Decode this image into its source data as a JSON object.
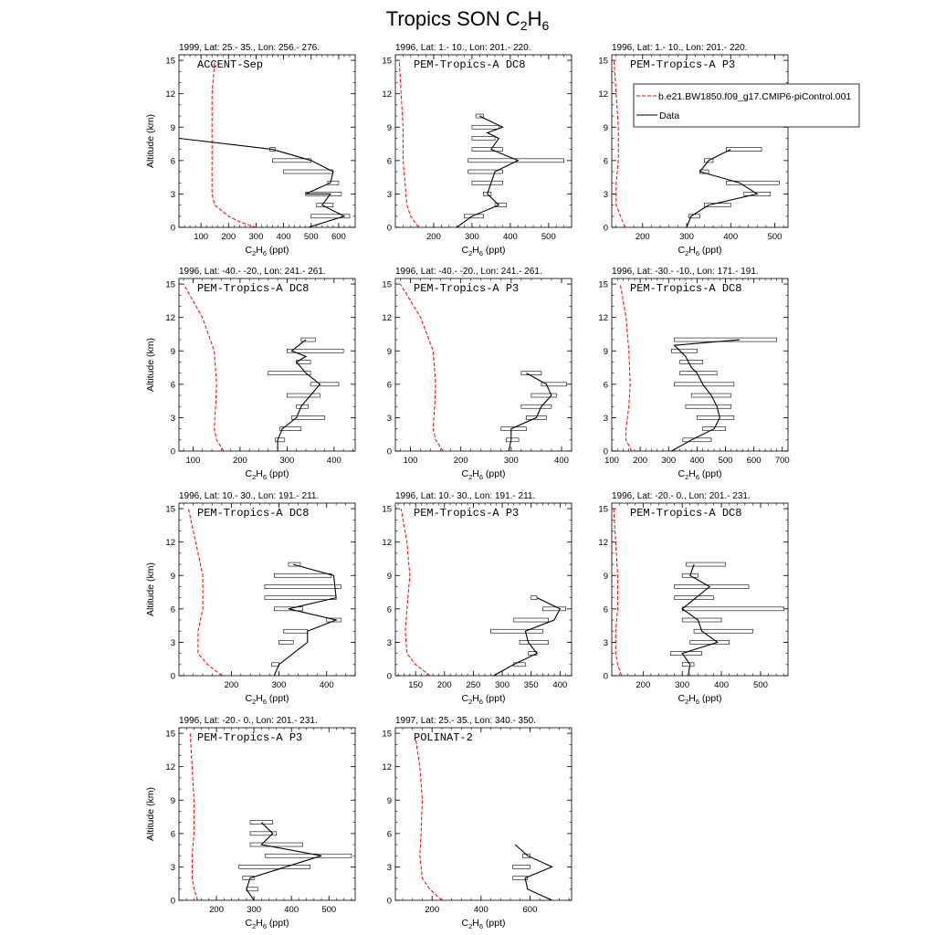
{
  "figure": {
    "title_prefix": "Tropics SON C",
    "title_sub1": "2",
    "title_mid": "H",
    "title_sub2": "6"
  },
  "axes_text": {
    "ylabel": "Altitude (km)",
    "xlabel_prefix": "C",
    "xlabel_sub1": "2",
    "xlabel_mid": "H",
    "xlabel_sub2": "6",
    "xlabel_suffix": " (ppt)"
  },
  "legend": {
    "model_label": "b.e21.BW1850.f09_g17.CMIP6-piControl.001",
    "data_label": "Data",
    "model_color": "#ff0000",
    "data_color": "#000000"
  },
  "chart_data": [
    {
      "type": "line",
      "header": "1999, Lat: 25.- 35., Lon: 256.- 276.",
      "campaign": "ACCENT-Sep",
      "xlim": [
        20,
        660
      ],
      "ylim": [
        0,
        15.5
      ],
      "xticks": [
        100,
        200,
        300,
        400,
        500,
        600
      ],
      "yticks": [
        0,
        3,
        6,
        9,
        12,
        15
      ],
      "model": {
        "x": [
          300,
          240,
          200,
          150,
          140,
          140,
          140,
          150
        ],
        "y": [
          0,
          0.5,
          1,
          2,
          3,
          6,
          12,
          15
        ]
      },
      "data": {
        "x": [
          490,
          620,
          540,
          570,
          480,
          570,
          580,
          500,
          360,
          20
        ],
        "y": [
          0,
          1,
          2,
          3,
          3,
          4,
          5,
          6,
          7,
          8
        ]
      },
      "bars": [
        [
          500,
          640,
          1
        ],
        [
          520,
          580,
          2
        ],
        [
          480,
          610,
          3
        ],
        [
          560,
          600,
          4
        ],
        [
          400,
          580,
          5
        ],
        [
          360,
          500,
          6
        ],
        [
          350,
          370,
          7
        ]
      ]
    },
    {
      "type": "line",
      "header": "1996, Lat: 1.- 10., Lon: 201.- 220.",
      "campaign": "PEM-Tropics-A DC8",
      "xlim": [
        100,
        560
      ],
      "ylim": [
        0,
        15.5
      ],
      "xticks": [
        200,
        300,
        400,
        500
      ],
      "yticks": [
        0,
        3,
        6,
        9,
        12,
        15
      ],
      "model": {
        "x": [
          160,
          140,
          130,
          125,
          120,
          120,
          115,
          110
        ],
        "y": [
          0,
          1,
          2,
          4,
          6,
          9,
          12,
          15
        ]
      },
      "data": {
        "x": [
          260,
          300,
          370,
          340,
          350,
          360,
          420,
          350,
          370,
          340,
          380,
          320
        ],
        "y": [
          0,
          1,
          2,
          3,
          4,
          5,
          6,
          7,
          8,
          8.5,
          9,
          10
        ]
      },
      "bars": [
        [
          280,
          330,
          1
        ],
        [
          360,
          390,
          2
        ],
        [
          330,
          350,
          3
        ],
        [
          300,
          380,
          4
        ],
        [
          290,
          380,
          5
        ],
        [
          290,
          540,
          6
        ],
        [
          300,
          380,
          7
        ],
        [
          300,
          360,
          8
        ],
        [
          300,
          370,
          9
        ],
        [
          310,
          330,
          10
        ]
      ]
    },
    {
      "type": "line",
      "header": "1996, Lat: 1.- 10., Lon: 201.- 220.",
      "campaign": "PEM-Tropics-A P3",
      "xlim": [
        130,
        530
      ],
      "ylim": [
        0,
        15.5
      ],
      "xticks": [
        200,
        300,
        400,
        500
      ],
      "yticks": [
        0,
        3,
        6,
        9,
        12,
        15
      ],
      "model": {
        "x": [
          160,
          150,
          140,
          140,
          145,
          145,
          140,
          135
        ],
        "y": [
          0,
          1,
          2,
          4,
          6,
          9,
          12,
          15
        ]
      },
      "data": {
        "x": [
          300,
          310,
          350,
          460,
          420,
          330,
          350,
          400
        ],
        "y": [
          0,
          1,
          2,
          3,
          4,
          5,
          6,
          7
        ]
      },
      "bars": [
        [
          305,
          330,
          1
        ],
        [
          340,
          400,
          2
        ],
        [
          430,
          490,
          3
        ],
        [
          390,
          510,
          4
        ],
        [
          330,
          350,
          5
        ],
        [
          340,
          360,
          6
        ],
        [
          390,
          470,
          7
        ]
      ]
    },
    {
      "type": "line",
      "header": "1996, Lat: -40.- -20., Lon: 241.- 261.",
      "campaign": "PEM-Tropics-A DC8",
      "xlim": [
        70,
        445
      ],
      "ylim": [
        0,
        15.5
      ],
      "xticks": [
        100,
        200,
        300,
        400
      ],
      "yticks": [
        0,
        3,
        6,
        9,
        12,
        15
      ],
      "model": {
        "x": [
          165,
          150,
          145,
          148,
          150,
          145,
          120,
          80
        ],
        "y": [
          0,
          1,
          2,
          4,
          6,
          9,
          12,
          15
        ]
      },
      "data": {
        "x": [
          280,
          280,
          290,
          320,
          330,
          350,
          370,
          340,
          320,
          340,
          310,
          340
        ],
        "y": [
          0,
          1,
          2,
          3,
          4,
          5,
          6,
          7,
          8,
          8.5,
          9,
          10
        ]
      },
      "bars": [
        [
          275,
          295,
          1
        ],
        [
          285,
          330,
          2
        ],
        [
          310,
          380,
          3
        ],
        [
          320,
          345,
          4
        ],
        [
          300,
          370,
          5
        ],
        [
          350,
          410,
          6
        ],
        [
          260,
          350,
          7
        ],
        [
          320,
          350,
          8
        ],
        [
          300,
          420,
          9
        ],
        [
          330,
          360,
          10
        ]
      ]
    },
    {
      "type": "line",
      "header": "1996, Lat: -40.- -20., Lon: 241.- 261.",
      "campaign": "PEM-Tropics-A P3",
      "xlim": [
        70,
        420
      ],
      "ylim": [
        0,
        15.5
      ],
      "xticks": [
        100,
        200,
        300,
        400
      ],
      "yticks": [
        0,
        3,
        6,
        9,
        12,
        15
      ],
      "model": {
        "x": [
          165,
          150,
          145,
          148,
          150,
          145,
          120,
          80
        ],
        "y": [
          0,
          1,
          2,
          4,
          6,
          9,
          12,
          15
        ]
      },
      "data": {
        "x": [
          295,
          300,
          300,
          350,
          360,
          380,
          370,
          330
        ],
        "y": [
          0,
          1,
          2,
          3,
          4,
          5,
          6,
          7
        ]
      },
      "bars": [
        [
          290,
          315,
          1
        ],
        [
          280,
          330,
          2
        ],
        [
          330,
          370,
          3
        ],
        [
          320,
          380,
          4
        ],
        [
          340,
          390,
          5
        ],
        [
          360,
          410,
          6
        ],
        [
          320,
          360,
          7
        ]
      ]
    },
    {
      "type": "line",
      "header": "1996, Lat: -30.- -10., Lon: 171.- 191.",
      "campaign": "PEM-Tropics-A DC8",
      "xlim": [
        100,
        720
      ],
      "ylim": [
        0,
        15.5
      ],
      "xticks": [
        100,
        200,
        300,
        400,
        500,
        600,
        700
      ],
      "yticks": [
        0,
        3,
        6,
        9,
        12,
        15
      ],
      "model": {
        "x": [
          170,
          150,
          150,
          160,
          165,
          160,
          150,
          130
        ],
        "y": [
          0,
          1,
          2,
          4,
          6,
          9,
          12,
          15
        ]
      },
      "data": {
        "x": [
          310,
          380,
          460,
          480,
          470,
          450,
          420,
          400,
          380,
          370,
          360,
          340,
          320,
          550
        ],
        "y": [
          0,
          1,
          2,
          3,
          4,
          5,
          6,
          7,
          7.5,
          8,
          8.5,
          9,
          9.5,
          10
        ]
      },
      "bars": [
        [
          350,
          450,
          1
        ],
        [
          420,
          500,
          2
        ],
        [
          400,
          530,
          3
        ],
        [
          360,
          520,
          4
        ],
        [
          380,
          520,
          5
        ],
        [
          320,
          530,
          6
        ],
        [
          340,
          470,
          7
        ],
        [
          340,
          420,
          8
        ],
        [
          310,
          400,
          9
        ],
        [
          320,
          680,
          10
        ]
      ]
    },
    {
      "type": "line",
      "header": "1996, Lat: 10.- 30., Lon: 191.- 211.",
      "campaign": "PEM-Tropics-A DC8",
      "xlim": [
        90,
        460
      ],
      "ylim": [
        0,
        15.5
      ],
      "xticks": [
        200,
        300,
        400
      ],
      "yticks": [
        0,
        3,
        6,
        9,
        12,
        15
      ],
      "model": {
        "x": [
          180,
          150,
          130,
          130,
          140,
          140,
          125,
          110
        ],
        "y": [
          0,
          1,
          2,
          4,
          6,
          9,
          12,
          15
        ]
      },
      "data": {
        "x": [
          290,
          300,
          330,
          360,
          360,
          420,
          320,
          420,
          415,
          330
        ],
        "y": [
          0,
          1,
          2,
          3,
          4,
          5,
          6,
          7,
          9,
          10
        ]
      },
      "bars": [
        [
          285,
          300,
          1
        ],
        [
          300,
          330,
          3
        ],
        [
          310,
          360,
          4
        ],
        [
          400,
          430,
          5
        ],
        [
          290,
          350,
          6
        ],
        [
          270,
          420,
          7
        ],
        [
          270,
          430,
          8
        ],
        [
          290,
          410,
          9
        ],
        [
          320,
          345,
          10
        ]
      ]
    },
    {
      "type": "line",
      "header": "1996, Lat: 10.- 30., Lon: 191.- 211.",
      "campaign": "PEM-Tropics-A P3",
      "xlim": [
        115,
        420
      ],
      "ylim": [
        0,
        15.5
      ],
      "xticks": [
        150,
        200,
        250,
        300,
        350,
        400
      ],
      "yticks": [
        0,
        3,
        6,
        9,
        12,
        15
      ],
      "model": {
        "x": [
          175,
          150,
          135,
          132,
          135,
          140,
          135,
          125
        ],
        "y": [
          0,
          1,
          2,
          4,
          6,
          9,
          12,
          15
        ]
      },
      "data": {
        "x": [
          285,
          320,
          360,
          345,
          340,
          390,
          400,
          360
        ],
        "y": [
          0,
          1,
          2,
          3,
          4,
          5,
          6,
          7
        ]
      },
      "bars": [
        [
          320,
          340,
          1
        ],
        [
          345,
          360,
          2
        ],
        [
          330,
          380,
          3
        ],
        [
          280,
          370,
          4
        ],
        [
          320,
          380,
          5
        ],
        [
          370,
          410,
          6
        ],
        [
          350,
          360,
          7
        ]
      ]
    },
    {
      "type": "line",
      "header": "1996, Lat: -20.- 0., Lon: 201.- 231.",
      "campaign": "PEM-Tropics-A DC8",
      "xlim": [
        120,
        570
      ],
      "ylim": [
        0,
        15.5
      ],
      "xticks": [
        200,
        300,
        400,
        500
      ],
      "yticks": [
        0,
        3,
        6,
        9,
        12,
        15
      ],
      "model": {
        "x": [
          145,
          135,
          130,
          130,
          135,
          135,
          130,
          125
        ],
        "y": [
          0,
          1,
          2,
          4,
          6,
          9,
          12,
          15
        ]
      },
      "data": {
        "x": [
          315,
          320,
          300,
          390,
          350,
          340,
          300,
          370,
          320,
          330
        ],
        "y": [
          0,
          1,
          2,
          3,
          4,
          5,
          6,
          8,
          9,
          10
        ]
      },
      "bars": [
        [
          300,
          330,
          1
        ],
        [
          270,
          350,
          2
        ],
        [
          320,
          420,
          3
        ],
        [
          330,
          480,
          4
        ],
        [
          300,
          400,
          5
        ],
        [
          300,
          560,
          6
        ],
        [
          280,
          380,
          7
        ],
        [
          280,
          470,
          8
        ],
        [
          300,
          340,
          9
        ],
        [
          310,
          410,
          10
        ]
      ]
    },
    {
      "type": "line",
      "header": "1996, Lat: -20.- 0., Lon: 201.- 231.",
      "campaign": "PEM-Tropics-A P3",
      "xlim": [
        100,
        570
      ],
      "ylim": [
        0,
        15.5
      ],
      "xticks": [
        200,
        300,
        400,
        500
      ],
      "yticks": [
        0,
        3,
        6,
        9,
        12,
        15
      ],
      "model": {
        "x": [
          150,
          140,
          135,
          135,
          140,
          140,
          135,
          130
        ],
        "y": [
          0,
          1,
          2,
          4,
          6,
          9,
          12,
          15
        ]
      },
      "data": {
        "x": [
          300,
          280,
          290,
          480,
          320,
          350,
          320
        ],
        "y": [
          0,
          1,
          2,
          4,
          5,
          6,
          7
        ]
      },
      "bars": [
        [
          280,
          310,
          1
        ],
        [
          270,
          300,
          2
        ],
        [
          260,
          450,
          3
        ],
        [
          330,
          560,
          4
        ],
        [
          290,
          430,
          5
        ],
        [
          290,
          360,
          6
        ],
        [
          290,
          350,
          7
        ]
      ]
    },
    {
      "type": "line",
      "header": "1997, Lat: 25.- 35., Lon: 340.- 350.",
      "campaign": "POLINAT-2",
      "xlim": [
        50,
        770
      ],
      "ylim": [
        0,
        15.5
      ],
      "xticks": [
        200,
        400,
        600
      ],
      "yticks": [
        0,
        3,
        6,
        9,
        12,
        15
      ],
      "model": {
        "x": [
          240,
          190,
          160,
          150,
          155,
          160,
          150,
          130
        ],
        "y": [
          0,
          1,
          2,
          4,
          6,
          9,
          12,
          15
        ]
      },
      "data": {
        "x": [
          690,
          590,
          580,
          690,
          590,
          540
        ],
        "y": [
          0,
          1,
          2,
          3,
          4,
          5
        ]
      },
      "bars": [
        [
          530,
          590,
          2
        ],
        [
          530,
          600,
          3
        ],
        [
          570,
          600,
          4
        ]
      ]
    }
  ]
}
